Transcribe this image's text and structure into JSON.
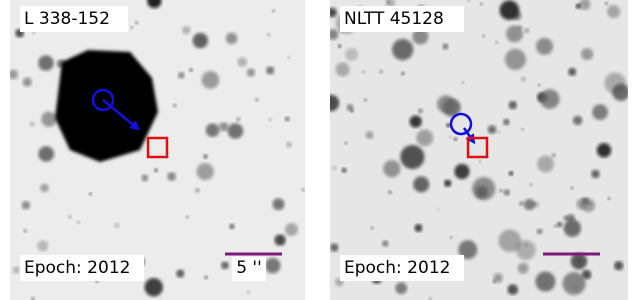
{
  "panels": [
    {
      "title": "L 338-152",
      "epoch": "Epoch: 2012",
      "scale_label": "5 ''"
    },
    {
      "title": "NLTT 45128",
      "epoch": "Epoch: 2012"
    }
  ]
}
